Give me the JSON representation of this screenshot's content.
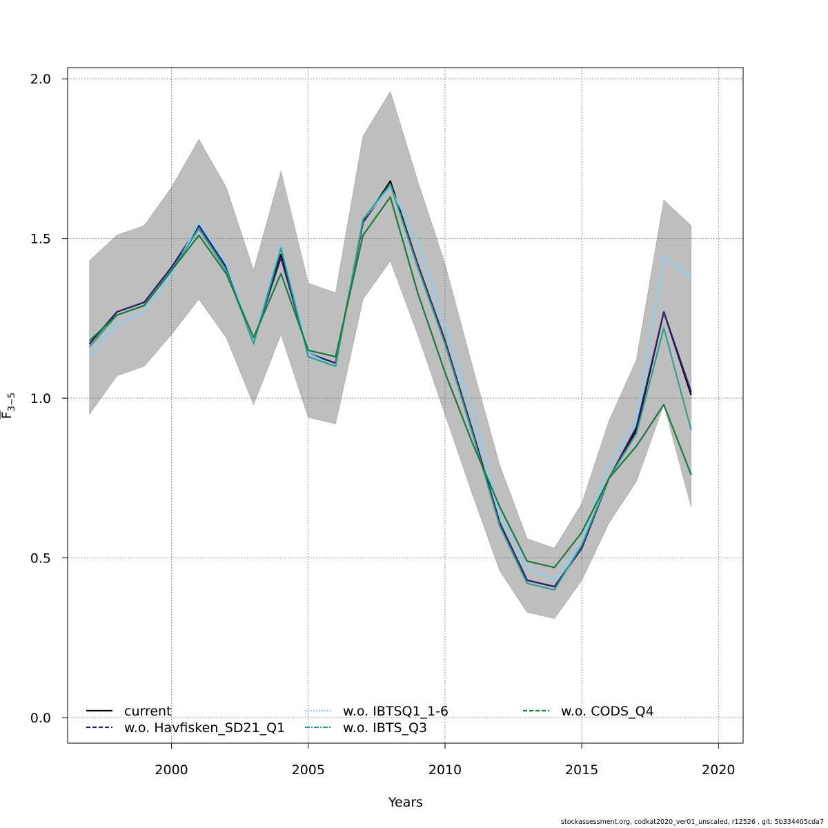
{
  "chart_data": {
    "type": "line",
    "title": "",
    "xlabel": "Years",
    "ylabel_main": "F",
    "ylabel_sub": "3−5",
    "xlim": [
      1996.2,
      2020.9
    ],
    "ylim": [
      -0.08,
      2.035
    ],
    "xticks": [
      2000,
      2005,
      2010,
      2015,
      2020
    ],
    "yticks": [
      0.0,
      0.5,
      1.0,
      1.5,
      2.0
    ],
    "xtick_labels": [
      "2000",
      "2005",
      "2010",
      "2015",
      "2020"
    ],
    "ytick_labels": [
      "0.0",
      "0.5",
      "1.0",
      "1.5",
      "2.0"
    ],
    "grid": true,
    "legend_position": "bottom",
    "x": [
      1997,
      1998,
      1999,
      2000,
      2001,
      2002,
      2003,
      2004,
      2005,
      2006,
      2007,
      2008,
      2009,
      2010,
      2011,
      2012,
      2013,
      2014,
      2015,
      2016,
      2017,
      2018,
      2019
    ],
    "confidence_band": {
      "color": "#bebebe",
      "lower": [
        0.95,
        1.07,
        1.1,
        1.2,
        1.31,
        1.19,
        0.98,
        1.2,
        0.94,
        0.92,
        1.31,
        1.43,
        1.2,
        0.95,
        0.7,
        0.46,
        0.33,
        0.31,
        0.43,
        0.61,
        0.74,
        0.98,
        0.66
      ],
      "upper": [
        1.43,
        1.51,
        1.54,
        1.66,
        1.81,
        1.66,
        1.4,
        1.71,
        1.36,
        1.33,
        1.82,
        1.96,
        1.68,
        1.42,
        1.1,
        0.79,
        0.56,
        0.53,
        0.67,
        0.93,
        1.12,
        1.62,
        1.54
      ]
    },
    "series": [
      {
        "name": "current",
        "color": "#000000",
        "dash": "solid",
        "values": [
          1.17,
          1.27,
          1.3,
          1.41,
          1.54,
          1.41,
          1.18,
          1.45,
          1.14,
          1.11,
          1.55,
          1.68,
          1.42,
          1.18,
          0.9,
          0.61,
          0.43,
          0.41,
          0.53,
          0.75,
          0.9,
          1.27,
          1.01
        ]
      },
      {
        "name": "w.o. Havfisken_SD21_Q1",
        "color": "#2e1e6e",
        "dash": "dashed",
        "values": [
          1.17,
          1.27,
          1.3,
          1.41,
          1.54,
          1.41,
          1.18,
          1.44,
          1.14,
          1.11,
          1.55,
          1.67,
          1.42,
          1.18,
          0.9,
          0.61,
          0.43,
          0.41,
          0.53,
          0.75,
          0.91,
          1.27,
          1.02
        ]
      },
      {
        "name": "w.o. IBTSQ1_1-6",
        "color": "#87cef0",
        "dash": "dotted",
        "values": [
          1.13,
          1.23,
          1.27,
          1.39,
          1.55,
          1.42,
          1.18,
          1.48,
          1.14,
          1.1,
          1.56,
          1.66,
          1.49,
          1.23,
          0.96,
          0.64,
          0.47,
          0.43,
          0.55,
          0.8,
          0.93,
          1.44,
          1.38
        ]
      },
      {
        "name": "w.o. IBTS_Q3",
        "color": "#30a090",
        "dash": "dashdot",
        "values": [
          1.16,
          1.26,
          1.29,
          1.4,
          1.53,
          1.4,
          1.17,
          1.47,
          1.13,
          1.1,
          1.56,
          1.67,
          1.41,
          1.17,
          0.89,
          0.6,
          0.42,
          0.4,
          0.54,
          0.75,
          0.89,
          1.22,
          0.9
        ]
      },
      {
        "name": "w.o. CODS_Q4",
        "color": "#157a3a",
        "dash": "dashed",
        "values": [
          1.18,
          1.26,
          1.29,
          1.4,
          1.51,
          1.39,
          1.19,
          1.39,
          1.15,
          1.13,
          1.51,
          1.63,
          1.33,
          1.08,
          0.86,
          0.66,
          0.49,
          0.47,
          0.58,
          0.75,
          0.85,
          0.98,
          0.76
        ]
      }
    ]
  },
  "footer": "stockassessment.org, codkat2020_ver01_unscaled, r12526 , git: 5b334405cda7"
}
